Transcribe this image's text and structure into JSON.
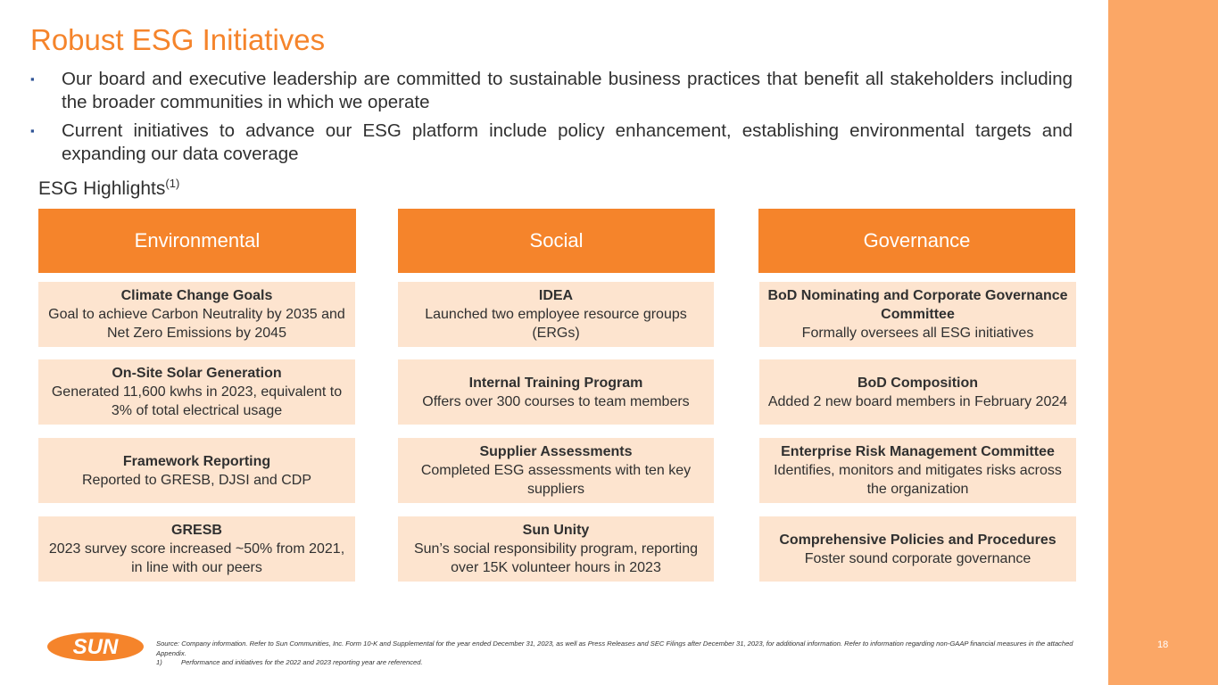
{
  "slide": {
    "title": "Robust ESG Initiatives",
    "bullets": [
      "Our board and executive leadership are committed to sustainable business practices that benefit all stakeholders including the broader communities in which we operate",
      "Current initiatives to advance our ESG platform include policy enhancement, establishing environmental targets and expanding our data coverage"
    ],
    "bullet_marker": "▪",
    "highlights_heading": "ESG Highlights",
    "highlights_footnote_ref": "(1)",
    "page_number": "18"
  },
  "columns": [
    {
      "header": "Environmental",
      "cards": [
        {
          "title": "Climate Change Goals",
          "text": "Goal to achieve Carbon Neutrality by 2035 and Net Zero Emissions by 2045"
        },
        {
          "title": "On-Site Solar Generation",
          "text": "Generated 11,600 kwhs in 2023, equivalent to 3% of total electrical usage"
        },
        {
          "title": "Framework Reporting",
          "text": "Reported to GRESB, DJSI and CDP"
        },
        {
          "title": "GRESB",
          "text": "2023 survey score increased ~50% from 2021, in line with our peers"
        }
      ]
    },
    {
      "header": "Social",
      "cards": [
        {
          "title": "IDEA",
          "text": "Launched two employee resource groups (ERGs)"
        },
        {
          "title": "Internal Training Program",
          "text": "Offers over 300 courses to team members"
        },
        {
          "title": "Supplier Assessments",
          "text": "Completed ESG assessments with ten key suppliers"
        },
        {
          "title": "Sun Unity",
          "text": "Sun’s social responsibility program, reporting over 15K volunteer hours in 2023"
        }
      ]
    },
    {
      "header": "Governance",
      "cards": [
        {
          "title": "BoD Nominating and Corporate Governance Committee",
          "text": "Formally oversees all ESG initiatives"
        },
        {
          "title": "BoD Composition",
          "text": "Added 2 new board members in February 2024"
        },
        {
          "title": "Enterprise Risk Management Committee",
          "text": "Identifies, monitors and mitigates risks across the organization"
        },
        {
          "title": "Comprehensive Policies and Procedures",
          "text": "Foster sound corporate governance"
        }
      ]
    }
  ],
  "footer": {
    "logo_text": "SUN",
    "source": "Source: Company information. Refer to Sun Communities, Inc. Form 10-K and Supplemental for the year ended December 31, 2023, as well as Press Releases and SEC Filings after December 31, 2023, for additional information. Refer to information regarding non-GAAP financial measures in the attached Appendix.",
    "notes": [
      {
        "num": "1)",
        "text": "Performance and initiatives for the 2022 and 2023 reporting year are referenced."
      }
    ]
  },
  "colors": {
    "accent": "#f5842b",
    "side_band": "#fba766",
    "card_bg": "#fde4cf",
    "bullet": "#2f5496"
  }
}
